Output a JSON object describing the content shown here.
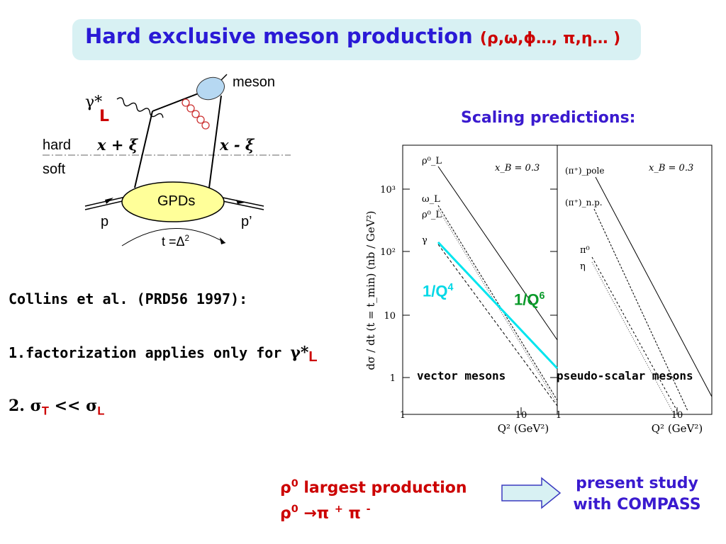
{
  "title": {
    "main": "Hard exclusive meson production ",
    "paren": "(ρ,ω,ϕ…, π,η… )"
  },
  "diagram": {
    "meson": "meson",
    "gamma": "γ*",
    "gamma_sub": "L",
    "hard": "hard",
    "soft": "soft",
    "x_plus": "x + ξ",
    "x_minus": "x - ξ",
    "gpds": "GPDs",
    "p": "p",
    "p_prime": "p’",
    "t_label": "t =Δ",
    "t_sup": "2",
    "colors": {
      "gpd_fill": "#ffff99",
      "meson_fill": "#b6d8f2",
      "gluon": "#cc3333"
    }
  },
  "scaling_title": "Scaling predictions:",
  "plot": {
    "y_axis_label": "dσ / dt (t = t_min)  (nb / GeV²)",
    "y_ticks": [
      "1",
      "10",
      "10²",
      "10³"
    ],
    "left_panel": {
      "x_ticks": [
        "1",
        "10"
      ],
      "x_axis_label": "Q² (GeV²)",
      "xb": "x_B = 0.3",
      "curve_labels": [
        "ρ⁰_L",
        "ω_L",
        "ρ⁰_L",
        "γ"
      ],
      "caption": "vector mesons"
    },
    "right_panel": {
      "x_ticks": [
        "1",
        "10"
      ],
      "x_axis_label": "Q² (GeV²)",
      "xb": "x_B = 0.3",
      "curve_labels": [
        "(π⁺)_pole",
        "(π⁺)_n.p.",
        "π⁰",
        "η"
      ],
      "caption": "pseudo-scalar mesons"
    },
    "q4_label": "1/Q",
    "q4_sup": "4",
    "q6_label": "1/Q",
    "q6_sup": "6",
    "colors": {
      "q4": "#00e5ee",
      "q6": "#0a9a2a"
    }
  },
  "collins": "Collins et al. (PRD56 1997):",
  "point1": "1.factorization applies only for ",
  "point1_gamma": "γ*",
  "point1_sub": "L",
  "point2_prefix": "2. ",
  "point2_sigma": "σ",
  "point2_t": "T",
  "point2_ll": " << ",
  "point2_sigma2": "σ",
  "point2_l": "L",
  "bottom_left": {
    "line1_rho": "ρ",
    "line1_sup": "0",
    "line1_text": " largest production",
    "line2_rho": "ρ",
    "line2_sup": "0",
    "line2_text": " →π ",
    "line2_plus": "+",
    "line2_pi": " π ",
    "line2_minus": "-"
  },
  "bottom_right": {
    "line1": "present study",
    "line2": "with COMPASS"
  }
}
